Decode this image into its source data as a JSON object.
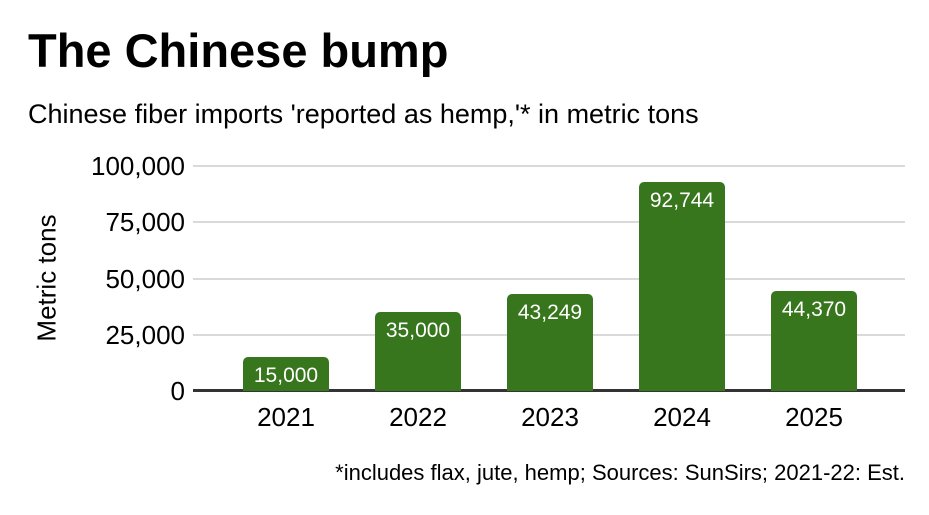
{
  "chart_data": {
    "type": "bar",
    "title": "The Chinese bump",
    "subtitle": "Chinese fiber imports 'reported as hemp,'* in metric tons",
    "categories": [
      "2021",
      "2022",
      "2023",
      "2024",
      "2025"
    ],
    "values": [
      15000,
      35000,
      43249,
      92744,
      44370
    ],
    "value_labels": [
      "15,000",
      "35,000",
      "43,249",
      "92,744",
      "44,370"
    ],
    "xlabel": "",
    "ylabel": "Metric tons",
    "ylim": [
      0,
      100000
    ],
    "yticks": [
      {
        "label": "0",
        "value": 0
      },
      {
        "label": "25,000",
        "value": 25000
      },
      {
        "label": "50,000",
        "value": 50000
      },
      {
        "label": "75,000",
        "value": 75000
      },
      {
        "label": "100,000",
        "value": 100000
      }
    ],
    "grid": true,
    "legend": "none",
    "footnote": "*includes flax, jute, hemp; Sources: SunSirs; 2021-22: Est.",
    "colors": {
      "bar": "#38761d",
      "bar_label": "#ffffff",
      "grid": "#d9d9d9",
      "axis": "#333333",
      "text": "#000000"
    }
  }
}
